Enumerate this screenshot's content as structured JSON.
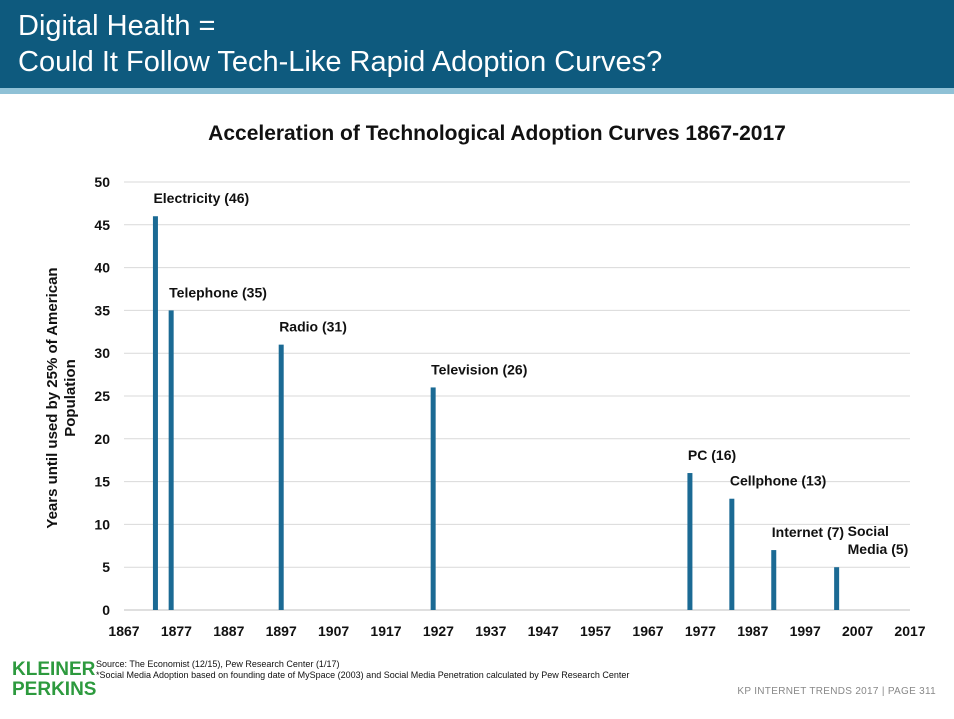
{
  "header": {
    "title_line1": "Digital Health =",
    "title_line2": "Could It Follow Tech-Like Rapid Adoption Curves?"
  },
  "colors": {
    "header_bg": "#0e5a7e",
    "header_stripe": "#8fc1d6",
    "bar": "#1b6a94",
    "logo": "#2d9a3e"
  },
  "chart_data": {
    "type": "bar",
    "title": "Acceleration of Technological Adoption Curves 1867-2017",
    "xlabel": "",
    "ylabel": "Years until used by 25% of American Population",
    "xlim": [
      1867,
      2017
    ],
    "ylim": [
      0,
      50
    ],
    "xticks": [
      1867,
      1877,
      1887,
      1897,
      1907,
      1917,
      1927,
      1937,
      1947,
      1957,
      1967,
      1977,
      1987,
      1997,
      2007,
      2017
    ],
    "yticks": [
      0,
      5,
      10,
      15,
      20,
      25,
      30,
      35,
      40,
      45,
      50
    ],
    "grid": "horizontal",
    "bars": [
      {
        "label": "Electricity (46)",
        "x": 1873,
        "value": 46
      },
      {
        "label": "Telephone (35)",
        "x": 1876,
        "value": 35
      },
      {
        "label": "Radio (31)",
        "x": 1897,
        "value": 31
      },
      {
        "label": "Television (26)",
        "x": 1926,
        "value": 26
      },
      {
        "label": "PC (16)",
        "x": 1975,
        "value": 16
      },
      {
        "label": "Cellphone (13)",
        "x": 1983,
        "value": 13
      },
      {
        "label": "Internet (7)",
        "x": 1991,
        "value": 7
      },
      {
        "label": "Social\nMedia (5)",
        "x": 2003,
        "value": 5
      }
    ]
  },
  "source": {
    "line1": "Source: The Economist (12/15), Pew Research Center (1/17)",
    "line2": "*Social Media Adoption based on founding date of MySpace (2003) and Social Media Penetration calculated by Pew Research Center"
  },
  "logo": {
    "line1": "KLEINER",
    "line2": "PERKINS"
  },
  "footer": {
    "text": "KP INTERNET TRENDS 2017  |  PAGE 311"
  }
}
